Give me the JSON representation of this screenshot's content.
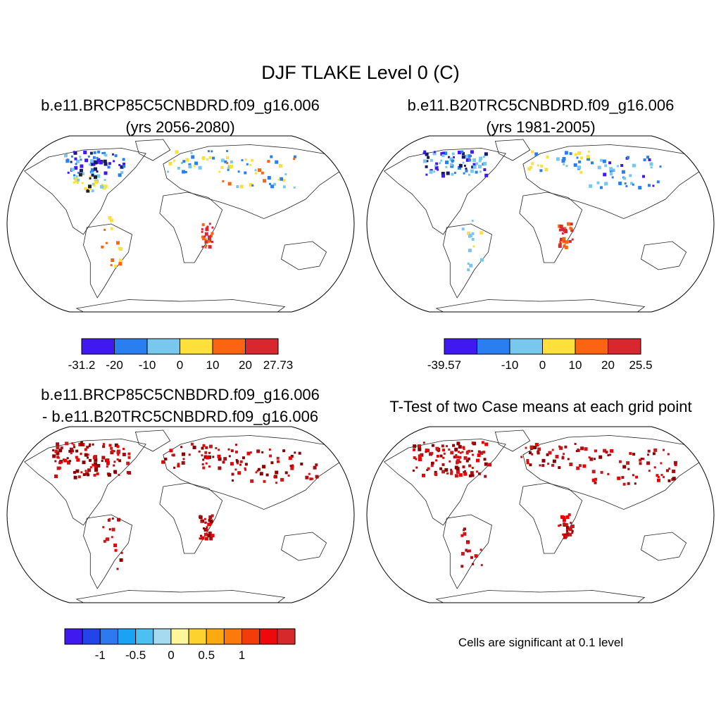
{
  "title": "DJF TLAKE Level 0 (C)",
  "panels": [
    {
      "title_line1": "b.e11.BRCP85C5CNBDRD.f09_g16.006",
      "title_line2": "(yrs 2056-2080)",
      "colorbar": {
        "colors": [
          "#4019f0",
          "#2a7ff0",
          "#78c8ee",
          "#fde03c",
          "#fb6410",
          "#d8272e"
        ],
        "labels": [
          "-31.2",
          "-20",
          "-10",
          "0",
          "10",
          "20",
          "27.73"
        ]
      }
    },
    {
      "title_line1": "b.e11.B20TRC5CNBDRD.f09_g16.006",
      "title_line2": "(yrs 1981-2005)",
      "colorbar": {
        "colors": [
          "#4019f0",
          "#2a7ff0",
          "#78c8ee",
          "#fde03c",
          "#fb6410",
          "#d8272e"
        ],
        "labels": [
          "-39.57",
          "-10",
          "0",
          "10",
          "20",
          "25.5"
        ]
      }
    },
    {
      "title_line1": "b.e11.BRCP85C5CNBDRD.f09_g16.006",
      "title_line2": "- b.e11.B20TRC5CNBDRD.f09_g16.006",
      "colorbar": {
        "colors": [
          "#4019f0",
          "#2244e8",
          "#2d79f0",
          "#1aa3f4",
          "#4cc0f0",
          "#a6daf0",
          "#fff59a",
          "#fdd22e",
          "#fdaa12",
          "#fb7a0c",
          "#f23c0a",
          "#ee0a0a",
          "#d5292c"
        ],
        "labels": [
          "-1",
          "-0.5",
          "0",
          "0.5",
          "1"
        ]
      }
    },
    {
      "title_line1": "T-Test of two Case means at each grid point",
      "note": "Cells are significant at 0.1 level"
    }
  ]
}
